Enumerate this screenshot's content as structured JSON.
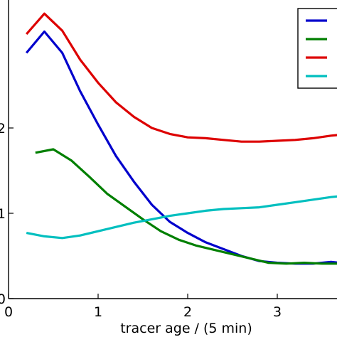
{
  "chart_data": {
    "type": "line",
    "title": "",
    "xlabel": "tracer age / (5 min)",
    "ylabel": "",
    "xlim": [
      0,
      3.7
    ],
    "ylim": [
      0,
      3.3
    ],
    "grid": false,
    "legend_placement": "top-right",
    "x_ticks": [
      {
        "value": 0,
        "label": "0"
      },
      {
        "value": 1,
        "label": "1"
      },
      {
        "value": 2,
        "label": "2"
      },
      {
        "value": 3,
        "label": "3"
      }
    ],
    "y_ticks": [
      {
        "value": 0,
        "label": "0"
      },
      {
        "value": 1,
        "label": "1"
      },
      {
        "value": 2,
        "label": "2"
      }
    ],
    "series": [
      {
        "color": "#0000cc",
        "points": [
          [
            0.2,
            2.88
          ],
          [
            0.4,
            3.13
          ],
          [
            0.6,
            2.88
          ],
          [
            0.8,
            2.43
          ],
          [
            1.0,
            2.04
          ],
          [
            1.2,
            1.67
          ],
          [
            1.4,
            1.37
          ],
          [
            1.6,
            1.1
          ],
          [
            1.8,
            0.9
          ],
          [
            2.0,
            0.77
          ],
          [
            2.2,
            0.66
          ],
          [
            2.4,
            0.58
          ],
          [
            2.6,
            0.5
          ],
          [
            2.8,
            0.44
          ],
          [
            3.0,
            0.42
          ],
          [
            3.2,
            0.41
          ],
          [
            3.4,
            0.41
          ],
          [
            3.6,
            0.43
          ],
          [
            3.7,
            0.42
          ]
        ]
      },
      {
        "color": "#007f00",
        "points": [
          [
            0.3,
            1.71
          ],
          [
            0.5,
            1.75
          ],
          [
            0.7,
            1.62
          ],
          [
            0.9,
            1.43
          ],
          [
            1.1,
            1.23
          ],
          [
            1.3,
            1.08
          ],
          [
            1.5,
            0.93
          ],
          [
            1.7,
            0.79
          ],
          [
            1.9,
            0.69
          ],
          [
            2.1,
            0.62
          ],
          [
            2.3,
            0.57
          ],
          [
            2.5,
            0.52
          ],
          [
            2.7,
            0.47
          ],
          [
            2.9,
            0.42
          ],
          [
            3.1,
            0.41
          ],
          [
            3.3,
            0.42
          ],
          [
            3.5,
            0.41
          ],
          [
            3.7,
            0.41
          ]
        ]
      },
      {
        "color": "#dd0000",
        "points": [
          [
            0.2,
            3.1
          ],
          [
            0.4,
            3.34
          ],
          [
            0.6,
            3.14
          ],
          [
            0.8,
            2.8
          ],
          [
            1.0,
            2.53
          ],
          [
            1.2,
            2.3
          ],
          [
            1.4,
            2.13
          ],
          [
            1.6,
            2.0
          ],
          [
            1.8,
            1.93
          ],
          [
            2.0,
            1.89
          ],
          [
            2.2,
            1.88
          ],
          [
            2.4,
            1.86
          ],
          [
            2.6,
            1.84
          ],
          [
            2.8,
            1.84
          ],
          [
            3.0,
            1.85
          ],
          [
            3.2,
            1.86
          ],
          [
            3.4,
            1.88
          ],
          [
            3.6,
            1.91
          ],
          [
            3.7,
            1.92
          ]
        ]
      },
      {
        "color": "#00bfbf",
        "points": [
          [
            0.2,
            0.77
          ],
          [
            0.4,
            0.73
          ],
          [
            0.6,
            0.71
          ],
          [
            0.8,
            0.74
          ],
          [
            1.0,
            0.79
          ],
          [
            1.2,
            0.84
          ],
          [
            1.4,
            0.89
          ],
          [
            1.6,
            0.93
          ],
          [
            1.8,
            0.97
          ],
          [
            2.0,
            1.0
          ],
          [
            2.2,
            1.03
          ],
          [
            2.4,
            1.05
          ],
          [
            2.6,
            1.06
          ],
          [
            2.8,
            1.07
          ],
          [
            3.0,
            1.1
          ],
          [
            3.2,
            1.13
          ],
          [
            3.4,
            1.16
          ],
          [
            3.6,
            1.19
          ],
          [
            3.7,
            1.2
          ]
        ]
      }
    ]
  }
}
